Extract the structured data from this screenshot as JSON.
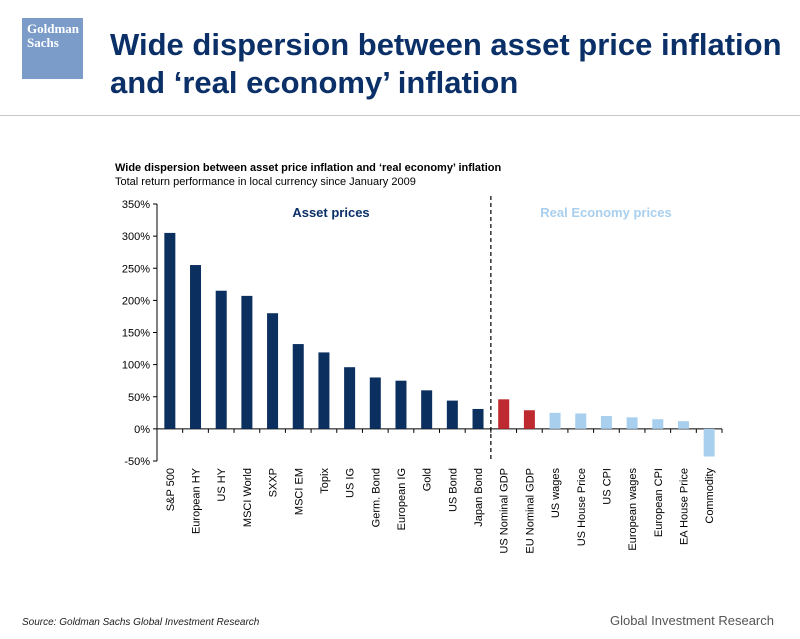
{
  "header": {
    "logo_line1": "Goldman",
    "logo_line2": "Sachs",
    "title_line1": "Wide dispersion between asset price inflation",
    "title_line2": "and ‘real economy’ inflation"
  },
  "chart_data": {
    "type": "bar",
    "title": "Wide dispersion between asset price inflation and ‘real economy’ inflation",
    "subtitle": "Total return performance in local currency since January 2009",
    "ylim": [
      -50,
      350
    ],
    "yticks": [
      -50,
      0,
      50,
      100,
      150,
      200,
      250,
      300,
      350
    ],
    "ytick_labels": [
      "-50%",
      "0%",
      "50%",
      "100%",
      "150%",
      "200%",
      "250%",
      "300%",
      "350%"
    ],
    "categories": [
      "S&P 500",
      "European HY",
      "US HY",
      "MSCI World",
      "SXXP",
      "MSCI EM",
      "Topix",
      "US IG",
      "Germ. Bond",
      "European IG",
      "Gold",
      "US Bond",
      "Japan Bond",
      "US Nominal GDP",
      "EU Nominal GDP",
      "US wages",
      "US House Price",
      "US CPI",
      "European wages",
      "European CPI",
      "EA House Price",
      "Commodity"
    ],
    "values": [
      305,
      255,
      215,
      207,
      180,
      132,
      119,
      96,
      80,
      75,
      60,
      44,
      31,
      46,
      29,
      25,
      24,
      20,
      18,
      15,
      12,
      -43
    ],
    "bar_groups": [
      "asset",
      "asset",
      "asset",
      "asset",
      "asset",
      "asset",
      "asset",
      "asset",
      "asset",
      "asset",
      "asset",
      "asset",
      "asset",
      "gdp",
      "gdp",
      "real",
      "real",
      "real",
      "real",
      "real",
      "real",
      "real"
    ],
    "annotations": [
      {
        "text": "Asset prices",
        "color": "#0b3068"
      },
      {
        "text": "Real Economy prices",
        "color": "#a9cfee"
      }
    ],
    "colors": {
      "asset": "#0b2f5e",
      "gdp": "#bf2a30",
      "real": "#a9cfee",
      "divider": "#000000",
      "axis": "#000000"
    },
    "grid": false,
    "legend": "none"
  },
  "footer": {
    "source": "Source: Goldman Sachs Global Investment Research",
    "brand": "Global Investment Research"
  }
}
